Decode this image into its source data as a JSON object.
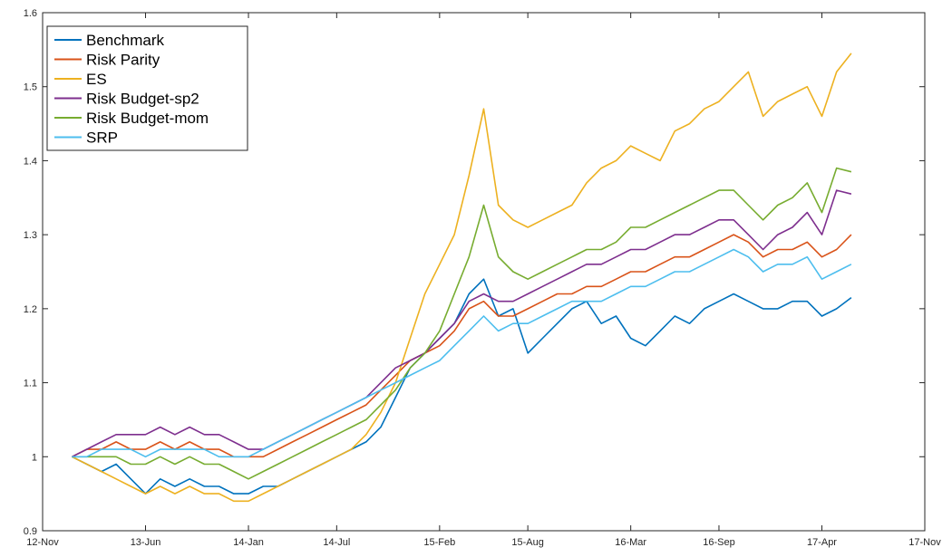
{
  "chart_data": {
    "type": "line",
    "title": "",
    "xlabel": "",
    "ylabel": "",
    "x_ticks": [
      "12-Nov",
      "13-Jun",
      "14-Jan",
      "14-Jul",
      "15-Feb",
      "15-Aug",
      "16-Mar",
      "16-Sep",
      "17-Apr",
      "17-Nov"
    ],
    "y_ticks": [
      "0.9",
      "1",
      "1.1",
      "1.2",
      "1.3",
      "1.4",
      "1.5",
      "1.6"
    ],
    "ylim": [
      0.9,
      1.6
    ],
    "grid": false,
    "legend_position": "top-left",
    "series": [
      {
        "name": "Benchmark",
        "color": "#0072BD",
        "x": [
          "13-Jan",
          "13-Feb",
          "13-Mar",
          "13-Apr",
          "13-May",
          "13-Jun",
          "13-Jul",
          "13-Aug",
          "13-Sep",
          "13-Oct",
          "13-Nov",
          "13-Dec",
          "14-Jan",
          "14-Feb",
          "14-Mar",
          "14-Apr",
          "14-May",
          "14-Jun",
          "14-Jul",
          "14-Aug",
          "14-Sep",
          "14-Oct",
          "14-Nov",
          "14-Dec",
          "15-Jan",
          "15-Feb",
          "15-Mar",
          "15-Apr",
          "15-May",
          "15-Jun",
          "15-Jul",
          "15-Aug",
          "15-Sep",
          "15-Oct",
          "15-Nov",
          "15-Dec",
          "16-Jan",
          "16-Feb",
          "16-Mar",
          "16-Apr",
          "16-May",
          "16-Jun",
          "16-Jul",
          "16-Aug",
          "16-Sep",
          "16-Oct",
          "16-Nov",
          "16-Dec",
          "17-Jan",
          "17-Feb",
          "17-Mar",
          "17-Apr",
          "17-May",
          "17-Jun"
        ],
        "y": [
          1.0,
          0.99,
          0.98,
          0.99,
          0.97,
          0.95,
          0.97,
          0.96,
          0.97,
          0.96,
          0.96,
          0.95,
          0.95,
          0.96,
          0.96,
          0.97,
          0.98,
          0.99,
          1.0,
          1.01,
          1.02,
          1.04,
          1.08,
          1.12,
          1.14,
          1.16,
          1.18,
          1.22,
          1.24,
          1.19,
          1.2,
          1.14,
          1.16,
          1.18,
          1.2,
          1.21,
          1.18,
          1.19,
          1.16,
          1.15,
          1.17,
          1.19,
          1.18,
          1.2,
          1.21,
          1.22,
          1.21,
          1.2,
          1.2,
          1.21,
          1.21,
          1.19,
          1.2,
          1.215
        ]
      },
      {
        "name": "Risk Parity",
        "color": "#D95319",
        "x": [
          "13-Jan",
          "13-Feb",
          "13-Mar",
          "13-Apr",
          "13-May",
          "13-Jun",
          "13-Jul",
          "13-Aug",
          "13-Sep",
          "13-Oct",
          "13-Nov",
          "13-Dec",
          "14-Jan",
          "14-Feb",
          "14-Mar",
          "14-Apr",
          "14-May",
          "14-Jun",
          "14-Jul",
          "14-Aug",
          "14-Sep",
          "14-Oct",
          "14-Nov",
          "14-Dec",
          "15-Jan",
          "15-Feb",
          "15-Mar",
          "15-Apr",
          "15-May",
          "15-Jun",
          "15-Jul",
          "15-Aug",
          "15-Sep",
          "15-Oct",
          "15-Nov",
          "15-Dec",
          "16-Jan",
          "16-Feb",
          "16-Mar",
          "16-Apr",
          "16-May",
          "16-Jun",
          "16-Jul",
          "16-Aug",
          "16-Sep",
          "16-Oct",
          "16-Nov",
          "16-Dec",
          "17-Jan",
          "17-Feb",
          "17-Mar",
          "17-Apr",
          "17-May",
          "17-Jun"
        ],
        "y": [
          1.0,
          1.01,
          1.01,
          1.02,
          1.01,
          1.01,
          1.02,
          1.01,
          1.02,
          1.01,
          1.01,
          1.0,
          1.0,
          1.0,
          1.01,
          1.02,
          1.03,
          1.04,
          1.05,
          1.06,
          1.07,
          1.09,
          1.11,
          1.13,
          1.14,
          1.15,
          1.17,
          1.2,
          1.21,
          1.19,
          1.19,
          1.2,
          1.21,
          1.22,
          1.22,
          1.23,
          1.23,
          1.24,
          1.25,
          1.25,
          1.26,
          1.27,
          1.27,
          1.28,
          1.29,
          1.3,
          1.29,
          1.27,
          1.28,
          1.28,
          1.29,
          1.27,
          1.28,
          1.3
        ]
      },
      {
        "name": "ES",
        "color": "#EDB120",
        "x": [
          "13-Jan",
          "13-Feb",
          "13-Mar",
          "13-Apr",
          "13-May",
          "13-Jun",
          "13-Jul",
          "13-Aug",
          "13-Sep",
          "13-Oct",
          "13-Nov",
          "13-Dec",
          "14-Jan",
          "14-Feb",
          "14-Mar",
          "14-Apr",
          "14-May",
          "14-Jun",
          "14-Jul",
          "14-Aug",
          "14-Sep",
          "14-Oct",
          "14-Nov",
          "14-Dec",
          "15-Jan",
          "15-Feb",
          "15-Mar",
          "15-Apr",
          "15-May",
          "15-Jun",
          "15-Jul",
          "15-Aug",
          "15-Sep",
          "15-Oct",
          "15-Nov",
          "15-Dec",
          "16-Jan",
          "16-Feb",
          "16-Mar",
          "16-Apr",
          "16-May",
          "16-Jun",
          "16-Jul",
          "16-Aug",
          "16-Sep",
          "16-Oct",
          "16-Nov",
          "16-Dec",
          "17-Jan",
          "17-Feb",
          "17-Mar",
          "17-Apr",
          "17-May",
          "17-Jun"
        ],
        "y": [
          1.0,
          0.99,
          0.98,
          0.97,
          0.96,
          0.95,
          0.96,
          0.95,
          0.96,
          0.95,
          0.95,
          0.94,
          0.94,
          0.95,
          0.96,
          0.97,
          0.98,
          0.99,
          1.0,
          1.01,
          1.03,
          1.06,
          1.1,
          1.16,
          1.22,
          1.26,
          1.3,
          1.38,
          1.47,
          1.34,
          1.32,
          1.31,
          1.32,
          1.33,
          1.34,
          1.37,
          1.39,
          1.4,
          1.42,
          1.41,
          1.4,
          1.44,
          1.45,
          1.47,
          1.48,
          1.5,
          1.52,
          1.46,
          1.48,
          1.49,
          1.5,
          1.46,
          1.52,
          1.545
        ]
      },
      {
        "name": "Risk Budget-sp2",
        "color": "#7E2F8E",
        "x": [
          "13-Jan",
          "13-Feb",
          "13-Mar",
          "13-Apr",
          "13-May",
          "13-Jun",
          "13-Jul",
          "13-Aug",
          "13-Sep",
          "13-Oct",
          "13-Nov",
          "13-Dec",
          "14-Jan",
          "14-Feb",
          "14-Mar",
          "14-Apr",
          "14-May",
          "14-Jun",
          "14-Jul",
          "14-Aug",
          "14-Sep",
          "14-Oct",
          "14-Nov",
          "14-Dec",
          "15-Jan",
          "15-Feb",
          "15-Mar",
          "15-Apr",
          "15-May",
          "15-Jun",
          "15-Jul",
          "15-Aug",
          "15-Sep",
          "15-Oct",
          "15-Nov",
          "15-Dec",
          "16-Jan",
          "16-Feb",
          "16-Mar",
          "16-Apr",
          "16-May",
          "16-Jun",
          "16-Jul",
          "16-Aug",
          "16-Sep",
          "16-Oct",
          "16-Nov",
          "16-Dec",
          "17-Jan",
          "17-Feb",
          "17-Mar",
          "17-Apr",
          "17-May",
          "17-Jun"
        ],
        "y": [
          1.0,
          1.01,
          1.02,
          1.03,
          1.03,
          1.03,
          1.04,
          1.03,
          1.04,
          1.03,
          1.03,
          1.02,
          1.01,
          1.01,
          1.02,
          1.03,
          1.04,
          1.05,
          1.06,
          1.07,
          1.08,
          1.1,
          1.12,
          1.13,
          1.14,
          1.16,
          1.18,
          1.21,
          1.22,
          1.21,
          1.21,
          1.22,
          1.23,
          1.24,
          1.25,
          1.26,
          1.26,
          1.27,
          1.28,
          1.28,
          1.29,
          1.3,
          1.3,
          1.31,
          1.32,
          1.32,
          1.3,
          1.28,
          1.3,
          1.31,
          1.33,
          1.3,
          1.36,
          1.355
        ]
      },
      {
        "name": "Risk Budget-mom",
        "color": "#77AC30",
        "x": [
          "13-Jan",
          "13-Feb",
          "13-Mar",
          "13-Apr",
          "13-May",
          "13-Jun",
          "13-Jul",
          "13-Aug",
          "13-Sep",
          "13-Oct",
          "13-Nov",
          "13-Dec",
          "14-Jan",
          "14-Feb",
          "14-Mar",
          "14-Apr",
          "14-May",
          "14-Jun",
          "14-Jul",
          "14-Aug",
          "14-Sep",
          "14-Oct",
          "14-Nov",
          "14-Dec",
          "15-Jan",
          "15-Feb",
          "15-Mar",
          "15-Apr",
          "15-May",
          "15-Jun",
          "15-Jul",
          "15-Aug",
          "15-Sep",
          "15-Oct",
          "15-Nov",
          "15-Dec",
          "16-Jan",
          "16-Feb",
          "16-Mar",
          "16-Apr",
          "16-May",
          "16-Jun",
          "16-Jul",
          "16-Aug",
          "16-Sep",
          "16-Oct",
          "16-Nov",
          "16-Dec",
          "17-Jan",
          "17-Feb",
          "17-Mar",
          "17-Apr",
          "17-May",
          "17-Jun"
        ],
        "y": [
          1.0,
          1.0,
          1.0,
          1.0,
          0.99,
          0.99,
          1.0,
          0.99,
          1.0,
          0.99,
          0.99,
          0.98,
          0.97,
          0.98,
          0.99,
          1.0,
          1.01,
          1.02,
          1.03,
          1.04,
          1.05,
          1.07,
          1.09,
          1.12,
          1.14,
          1.17,
          1.22,
          1.27,
          1.34,
          1.27,
          1.25,
          1.24,
          1.25,
          1.26,
          1.27,
          1.28,
          1.28,
          1.29,
          1.31,
          1.31,
          1.32,
          1.33,
          1.34,
          1.35,
          1.36,
          1.36,
          1.34,
          1.32,
          1.34,
          1.35,
          1.37,
          1.33,
          1.39,
          1.385
        ]
      },
      {
        "name": "SRP",
        "color": "#4DBEEE",
        "x": [
          "13-Jan",
          "13-Feb",
          "13-Mar",
          "13-Apr",
          "13-May",
          "13-Jun",
          "13-Jul",
          "13-Aug",
          "13-Sep",
          "13-Oct",
          "13-Nov",
          "13-Dec",
          "14-Jan",
          "14-Feb",
          "14-Mar",
          "14-Apr",
          "14-May",
          "14-Jun",
          "14-Jul",
          "14-Aug",
          "14-Sep",
          "14-Oct",
          "14-Nov",
          "14-Dec",
          "15-Jan",
          "15-Feb",
          "15-Mar",
          "15-Apr",
          "15-May",
          "15-Jun",
          "15-Jul",
          "15-Aug",
          "15-Sep",
          "15-Oct",
          "15-Nov",
          "15-Dec",
          "16-Jan",
          "16-Feb",
          "16-Mar",
          "16-Apr",
          "16-May",
          "16-Jun",
          "16-Jul",
          "16-Aug",
          "16-Sep",
          "16-Oct",
          "16-Nov",
          "16-Dec",
          "17-Jan",
          "17-Feb",
          "17-Mar",
          "17-Apr",
          "17-May",
          "17-Jun"
        ],
        "y": [
          1.0,
          1.0,
          1.01,
          1.01,
          1.01,
          1.0,
          1.01,
          1.01,
          1.01,
          1.01,
          1.0,
          1.0,
          1.0,
          1.01,
          1.02,
          1.03,
          1.04,
          1.05,
          1.06,
          1.07,
          1.08,
          1.09,
          1.1,
          1.11,
          1.12,
          1.13,
          1.15,
          1.17,
          1.19,
          1.17,
          1.18,
          1.18,
          1.19,
          1.2,
          1.21,
          1.21,
          1.21,
          1.22,
          1.23,
          1.23,
          1.24,
          1.25,
          1.25,
          1.26,
          1.27,
          1.28,
          1.27,
          1.25,
          1.26,
          1.26,
          1.27,
          1.24,
          1.25,
          1.26
        ]
      }
    ]
  }
}
